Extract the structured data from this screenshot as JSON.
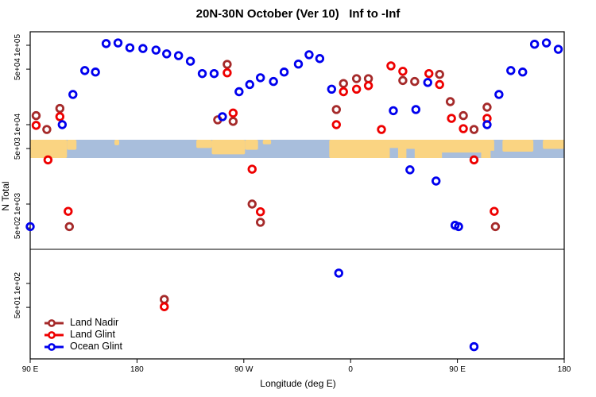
{
  "chart_data": {
    "type": "scatter",
    "title": "20N-30N October (Ver 10)   Inf to -Inf",
    "xlabel": "Longitude (deg E)",
    "ylabel": "N Total",
    "x_axis": {
      "note": "longitude axis wraps 450 degrees starting at 90E",
      "domain_deg": [
        90,
        540
      ],
      "ticks": [
        {
          "deg": 90,
          "label": "90 E"
        },
        {
          "deg": 180,
          "label": "180"
        },
        {
          "deg": 270,
          "label": "90 W"
        },
        {
          "deg": 360,
          "label": "0"
        },
        {
          "deg": 450,
          "label": "90 E"
        },
        {
          "deg": 540,
          "label": "180"
        }
      ]
    },
    "y_axis": {
      "scale": "log",
      "ticks": [
        {
          "v": 100000,
          "label": "1e+05"
        },
        {
          "v": 50000,
          "label": "5e+04"
        },
        {
          "v": 10000,
          "label": "1e+04"
        },
        {
          "v": 5000,
          "label": "5e+03"
        },
        {
          "v": 1000,
          "label": "1e+03"
        },
        {
          "v": 500,
          "label": "5e+02"
        },
        {
          "v": 100,
          "label": "1e+02"
        },
        {
          "v": 50,
          "label": "5e+01"
        }
      ]
    },
    "panel_break_value": 270,
    "map_band": {
      "ocean_color": "#A8BEDC",
      "land_color": "#FAD482",
      "value_top": 6500,
      "value_bottom": 3900,
      "land_segments": [
        {
          "d0": 90,
          "d1": 121,
          "f": 1.0
        },
        {
          "d0": 121,
          "d1": 129,
          "f": 0.55
        },
        {
          "d0": 161,
          "d1": 165,
          "f": 0.3
        },
        {
          "d0": 230,
          "d1": 243,
          "f": 0.45
        },
        {
          "d0": 243,
          "d1": 271,
          "f": 0.8
        },
        {
          "d0": 271,
          "d1": 282,
          "f": 0.55
        },
        {
          "d0": 286,
          "d1": 293,
          "f": 0.25
        },
        {
          "d0": 342,
          "d1": 481,
          "f": 1.0
        },
        {
          "d0": 488,
          "d1": 514,
          "f": 0.65
        },
        {
          "d0": 522,
          "d1": 540,
          "f": 0.5
        }
      ],
      "ocean_notches": [
        {
          "d0": 393,
          "d1": 400,
          "f": 0.55
        },
        {
          "d0": 407,
          "d1": 414,
          "f": 0.5
        },
        {
          "d0": 437,
          "d1": 470,
          "f": 0.3
        },
        {
          "d0": 478,
          "d1": 481,
          "f": 0.4
        }
      ]
    },
    "series": [
      {
        "name": "Land Nadir",
        "color": "#A52A2A",
        "points": [
          [
            95,
            13000
          ],
          [
            104,
            8700
          ],
          [
            115,
            16000
          ],
          [
            123,
            520
          ],
          [
            203,
            63
          ],
          [
            248,
            11500
          ],
          [
            256,
            57500
          ],
          [
            261,
            11000
          ],
          [
            277,
            1000
          ],
          [
            284,
            590
          ],
          [
            348,
            15500
          ],
          [
            354,
            33000
          ],
          [
            365,
            38000
          ],
          [
            375,
            38000
          ],
          [
            404,
            36000
          ],
          [
            414,
            35000
          ],
          [
            435,
            43000
          ],
          [
            444,
            19500
          ],
          [
            455,
            13000
          ],
          [
            464,
            8700
          ],
          [
            475,
            16600
          ],
          [
            482,
            520
          ]
        ]
      },
      {
        "name": "Land Glint",
        "color": "#EE0000",
        "points": [
          [
            95,
            9800
          ],
          [
            105,
            3600
          ],
          [
            115,
            12600
          ],
          [
            122,
            810
          ],
          [
            203,
            51
          ],
          [
            256,
            45000
          ],
          [
            261,
            14000
          ],
          [
            277,
            2750
          ],
          [
            284,
            800
          ],
          [
            348,
            10000
          ],
          [
            354,
            26000
          ],
          [
            365,
            28000
          ],
          [
            375,
            31000
          ],
          [
            386,
            8700
          ],
          [
            394,
            55000
          ],
          [
            404,
            47000
          ],
          [
            426,
            44000
          ],
          [
            435,
            32000
          ],
          [
            445,
            12000
          ],
          [
            455,
            8900
          ],
          [
            464,
            3600
          ],
          [
            475,
            12000
          ],
          [
            481,
            810
          ]
        ]
      },
      {
        "name": "Ocean Glint",
        "color": "#0000EE",
        "points": [
          [
            90,
            520
          ],
          [
            117,
            10000
          ],
          [
            126,
            24000
          ],
          [
            136,
            48000
          ],
          [
            145,
            46000
          ],
          [
            154,
            105000
          ],
          [
            164,
            107000
          ],
          [
            174,
            93000
          ],
          [
            185,
            91000
          ],
          [
            196,
            87000
          ],
          [
            205,
            78000
          ],
          [
            215,
            74000
          ],
          [
            225,
            63000
          ],
          [
            235,
            44000
          ],
          [
            245,
            44000
          ],
          [
            252,
            12600
          ],
          [
            266,
            26000
          ],
          [
            275,
            32000
          ],
          [
            284,
            39000
          ],
          [
            295,
            35000
          ],
          [
            304,
            46000
          ],
          [
            316,
            58000
          ],
          [
            325,
            76000
          ],
          [
            334,
            68000
          ],
          [
            344,
            28000
          ],
          [
            350,
            135
          ],
          [
            396,
            15000
          ],
          [
            410,
            2700
          ],
          [
            415,
            15500
          ],
          [
            425,
            34000
          ],
          [
            432,
            1950
          ],
          [
            448,
            540
          ],
          [
            451,
            520
          ],
          [
            464,
            16
          ],
          [
            475,
            10000
          ],
          [
            485,
            24000
          ],
          [
            495,
            48000
          ],
          [
            505,
            46000
          ],
          [
            515,
            103000
          ],
          [
            525,
            107000
          ],
          [
            535,
            89000
          ]
        ]
      }
    ]
  }
}
